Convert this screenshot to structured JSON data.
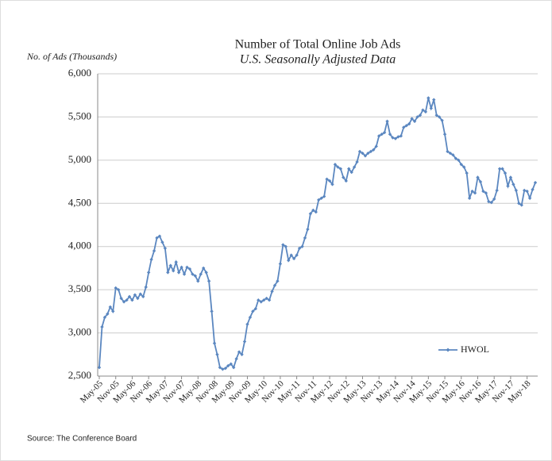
{
  "chart_data": {
    "type": "line",
    "title": "Number of Total Online Job Ads",
    "subtitle": "U.S. Seasonally Adjusted Data",
    "y_label": "No. of Ads (Thousands)",
    "source": "Source: The Conference Board",
    "categories": [
      "May-05",
      null,
      null,
      null,
      null,
      null,
      "Nov-05",
      null,
      null,
      null,
      null,
      null,
      "May-06",
      null,
      null,
      null,
      null,
      null,
      "Nov-06",
      null,
      null,
      null,
      null,
      null,
      "May-07",
      null,
      null,
      null,
      null,
      null,
      "Nov-07",
      null,
      null,
      null,
      null,
      null,
      "May-08",
      null,
      null,
      null,
      null,
      null,
      "Nov-08",
      null,
      null,
      null,
      null,
      null,
      "May-09",
      null,
      null,
      null,
      null,
      null,
      "Nov-09",
      null,
      null,
      null,
      null,
      null,
      "May-10",
      null,
      null,
      null,
      null,
      null,
      "Nov-10",
      null,
      null,
      null,
      null,
      null,
      "May-11",
      null,
      null,
      null,
      null,
      null,
      "Nov-11",
      null,
      null,
      null,
      null,
      null,
      "May-12",
      null,
      null,
      null,
      null,
      null,
      "Nov-12",
      null,
      null,
      null,
      null,
      null,
      "May-13",
      null,
      null,
      null,
      null,
      null,
      "Nov-13",
      null,
      null,
      null,
      null,
      null,
      "May-14",
      null,
      null,
      null,
      null,
      null,
      "Nov-14",
      null,
      null,
      null,
      null,
      null,
      "May-15",
      null,
      null,
      null,
      null,
      null,
      "Nov-15",
      null,
      null,
      null,
      null,
      null,
      "May-16",
      null,
      null,
      null,
      null,
      null,
      "Nov-16",
      null,
      null,
      null,
      null,
      null,
      "May-17",
      null,
      null,
      null,
      null,
      null,
      "Nov-17",
      null,
      null,
      null,
      null,
      null,
      "May-18",
      null,
      null,
      null
    ],
    "series": [
      {
        "name": "HWOL",
        "color": "#5b87c0",
        "values": [
          2600,
          3070,
          3180,
          3220,
          3300,
          3250,
          3520,
          3500,
          3400,
          3360,
          3380,
          3420,
          3380,
          3440,
          3400,
          3450,
          3420,
          3530,
          3700,
          3850,
          3950,
          4100,
          4120,
          4050,
          3980,
          3700,
          3780,
          3720,
          3820,
          3700,
          3760,
          3680,
          3760,
          3740,
          3680,
          3660,
          3600,
          3680,
          3750,
          3700,
          3600,
          3250,
          2880,
          2750,
          2600,
          2580,
          2590,
          2620,
          2640,
          2600,
          2700,
          2780,
          2750,
          2900,
          3100,
          3180,
          3250,
          3280,
          3380,
          3360,
          3380,
          3400,
          3380,
          3480,
          3550,
          3600,
          3800,
          4020,
          4000,
          3840,
          3900,
          3860,
          3900,
          3980,
          4000,
          4100,
          4200,
          4380,
          4420,
          4400,
          4540,
          4560,
          4580,
          4780,
          4760,
          4720,
          4950,
          4920,
          4900,
          4800,
          4760,
          4900,
          4860,
          4920,
          4980,
          5100,
          5080,
          5050,
          5080,
          5100,
          5120,
          5160,
          5280,
          5300,
          5320,
          5450,
          5300,
          5260,
          5250,
          5270,
          5280,
          5380,
          5400,
          5420,
          5480,
          5450,
          5500,
          5520,
          5580,
          5560,
          5720,
          5600,
          5700,
          5520,
          5500,
          5460,
          5300,
          5100,
          5080,
          5060,
          5020,
          5000,
          4950,
          4920,
          4850,
          4560,
          4640,
          4620,
          4800,
          4750,
          4640,
          4620,
          4520,
          4510,
          4550,
          4650,
          4900,
          4900,
          4850,
          4700,
          4800,
          4720,
          4650,
          4500,
          4480,
          4650,
          4640,
          4560,
          4660,
          4740
        ]
      }
    ],
    "ylim": [
      2500,
      6000
    ],
    "yticks": [
      {
        "value": 2500,
        "label": "2,500"
      },
      {
        "value": 3000,
        "label": "3,000"
      },
      {
        "value": 3500,
        "label": "3,500"
      },
      {
        "value": 4000,
        "label": "4,000"
      },
      {
        "value": 4500,
        "label": "4,500"
      },
      {
        "value": 5000,
        "label": "5,000"
      },
      {
        "value": 5500,
        "label": "5,500"
      },
      {
        "value": 6000,
        "label": "6,000"
      }
    ],
    "grid": true,
    "legend": "lower right"
  }
}
